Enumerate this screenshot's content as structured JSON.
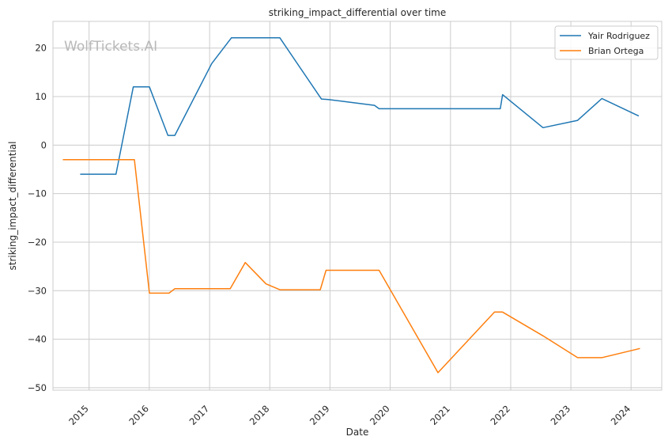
{
  "chart_data": {
    "type": "line",
    "title": "striking_impact_differential over time",
    "xlabel": "Date",
    "ylabel": "striking_impact_differential",
    "x_ticks": [
      "2015",
      "2016",
      "2017",
      "2018",
      "2019",
      "2020",
      "2021",
      "2022",
      "2023",
      "2024"
    ],
    "xlim": [
      "2014-05-27",
      "2024-07-05"
    ],
    "y_ticks": [
      20,
      10,
      0,
      -10,
      -20,
      -30,
      -40,
      -50
    ],
    "ylim": [
      -50.5,
      25.5
    ],
    "grid": true,
    "legend_position": "top-right",
    "watermark": "WolfTickets.AI",
    "series": [
      {
        "name": "Yair Rodriguez",
        "color": "#1f77b4",
        "points": [
          [
            "2014-11-08",
            -6
          ],
          [
            "2015-06-13",
            -6
          ],
          [
            "2015-09-26",
            12
          ],
          [
            "2016-01-02",
            12
          ],
          [
            "2016-04-23",
            2
          ],
          [
            "2016-06-04",
            2
          ],
          [
            "2017-01-14",
            16.8
          ],
          [
            "2017-05-13",
            22.1
          ],
          [
            "2018-03-03",
            22.1
          ],
          [
            "2018-11-10",
            9.5
          ],
          [
            "2018-12-22",
            9.4
          ],
          [
            "2019-09-28",
            8.2
          ],
          [
            "2019-10-26",
            7.5
          ],
          [
            "2021-10-30",
            7.5
          ],
          [
            "2021-11-13",
            10.4
          ],
          [
            "2022-07-16",
            3.6
          ],
          [
            "2023-02-11",
            5.1
          ],
          [
            "2023-07-08",
            9.6
          ],
          [
            "2024-02-17",
            6
          ]
        ]
      },
      {
        "name": "Brian Ortega",
        "color": "#ff7f0e",
        "points": [
          [
            "2014-07-26",
            -3
          ],
          [
            "2015-10-03",
            -3
          ],
          [
            "2016-01-02",
            -30.5
          ],
          [
            "2016-04-30",
            -30.5
          ],
          [
            "2016-06-04",
            -29.6
          ],
          [
            "2017-05-06",
            -29.6
          ],
          [
            "2017-08-05",
            -24.2
          ],
          [
            "2017-12-09",
            -28.6
          ],
          [
            "2018-03-03",
            -29.8
          ],
          [
            "2018-11-03",
            -29.8
          ],
          [
            "2018-12-08",
            -25.8
          ],
          [
            "2019-10-26",
            -25.8
          ],
          [
            "2020-10-17",
            -46.9
          ],
          [
            "2021-09-25",
            -34.4
          ],
          [
            "2021-11-13",
            -34.4
          ],
          [
            "2022-07-16",
            -39.3
          ],
          [
            "2023-02-11",
            -43.8
          ],
          [
            "2023-07-08",
            -43.8
          ],
          [
            "2024-02-24",
            -41.9
          ]
        ]
      }
    ]
  }
}
